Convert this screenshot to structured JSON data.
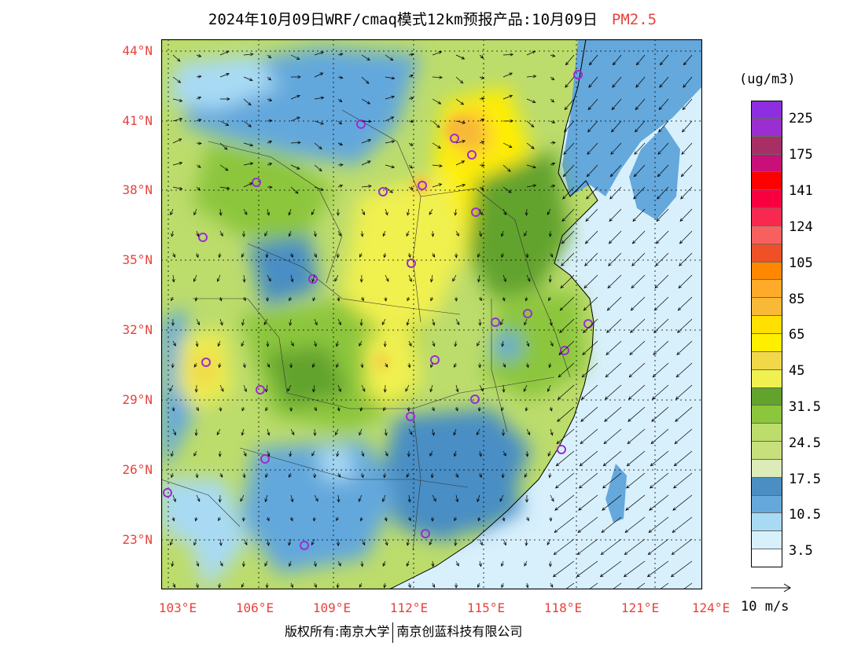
{
  "title": {
    "main": "2024年10月09日WRF/cmaq模式12km预报产品:10月09日",
    "pollutant": "PM2.5"
  },
  "axes": {
    "lat_labels": [
      "44°N",
      "41°N",
      "38°N",
      "35°N",
      "32°N",
      "29°N",
      "26°N",
      "23°N"
    ],
    "lat_values": [
      44,
      41,
      38,
      35,
      32,
      29,
      26,
      23
    ],
    "lon_labels": [
      "103°E",
      "106°E",
      "109°E",
      "112°E",
      "115°E",
      "118°E",
      "121°E",
      "124°E"
    ],
    "lon_values": [
      103,
      106,
      109,
      112,
      115,
      118,
      121,
      124
    ],
    "lat_range": [
      21,
      44.5
    ],
    "lon_range": [
      103,
      124
    ]
  },
  "legend": {
    "unit": "(ug/m3)",
    "colors": [
      "#8e2ee0",
      "#9a2ed0",
      "#a82e66",
      "#c81078",
      "#ff0000",
      "#f80040",
      "#f82850",
      "#f86060",
      "#f05028",
      "#ff8800",
      "#ffaa28",
      "#f8b838",
      "#ffe000",
      "#ffee00",
      "#f0d848",
      "#f0f050",
      "#62a32e",
      "#8cc63c",
      "#bcdc6c",
      "#c8e07c",
      "#dcebb8",
      "#4a8ec4",
      "#64a8dc",
      "#a8daf4",
      "#d8f0fc",
      "#ffffff"
    ],
    "labels": [
      "225",
      "175",
      "141",
      "124",
      "105",
      "85",
      "65",
      "45",
      "31.5",
      "24.5",
      "17.5",
      "10.5",
      "3.5"
    ]
  },
  "wind": {
    "reference_label": "10 m/s"
  },
  "footer": {
    "copyright": "版权所有:南京大学",
    "company": "南京创蓝科技有限公司"
  }
}
